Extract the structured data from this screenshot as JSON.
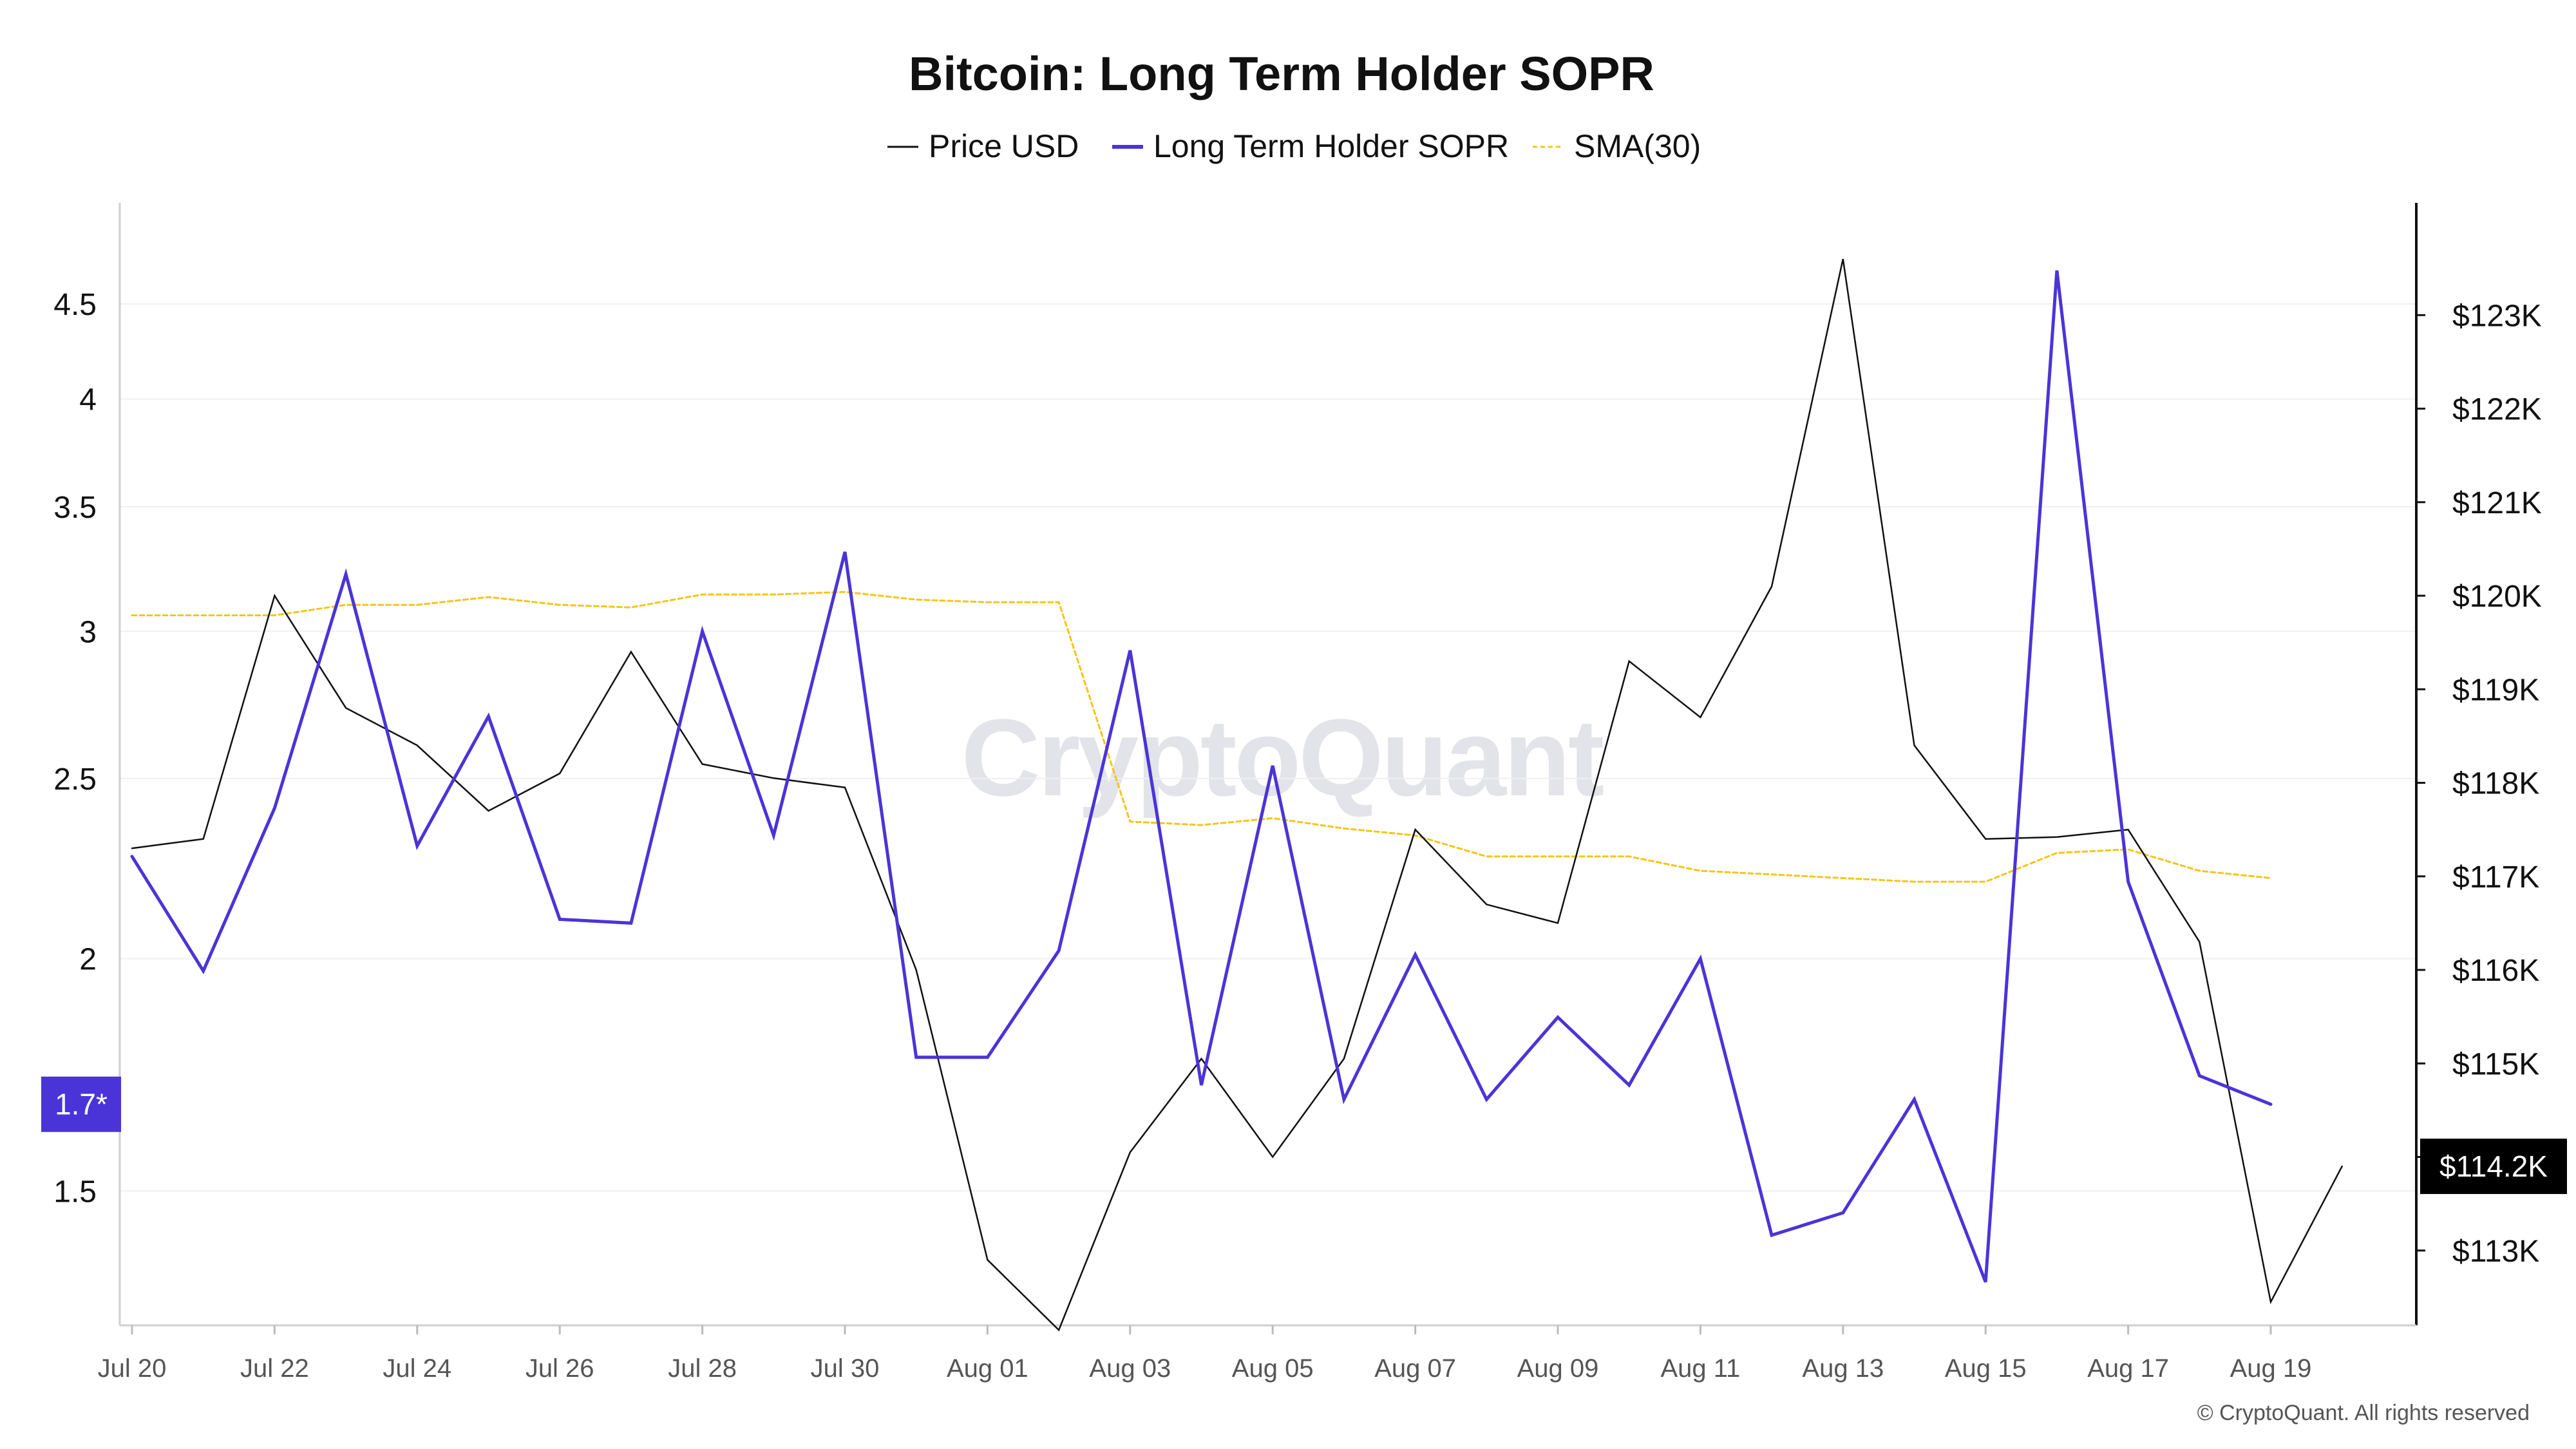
{
  "chart_data": {
    "type": "line",
    "title": "Bitcoin: Long Term Holder SOPR",
    "watermark": "CryptoQuant",
    "copyright": "© CryptoQuant. All rights reserved",
    "x": [
      "Jul 20",
      "Jul 21",
      "Jul 22",
      "Jul 23",
      "Jul 24",
      "Jul 25",
      "Jul 26",
      "Jul 27",
      "Jul 28",
      "Jul 29",
      "Jul 30",
      "Jul 31",
      "Aug 01",
      "Aug 02",
      "Aug 03",
      "Aug 04",
      "Aug 05",
      "Aug 06",
      "Aug 07",
      "Aug 08",
      "Aug 09",
      "Aug 10",
      "Aug 11",
      "Aug 12",
      "Aug 13",
      "Aug 14",
      "Aug 15",
      "Aug 16",
      "Aug 17",
      "Aug 18",
      "Aug 19",
      "Aug 20"
    ],
    "x_tick_labels": [
      "Jul 20",
      "Jul 22",
      "Jul 24",
      "Jul 26",
      "Jul 28",
      "Jul 30",
      "Aug 01",
      "Aug 03",
      "Aug 05",
      "Aug 07",
      "Aug 09",
      "Aug 11",
      "Aug 13",
      "Aug 15",
      "Aug 17",
      "Aug 19"
    ],
    "left_axis": {
      "scale": "log",
      "ticks": [
        "1.5",
        "2",
        "2.5",
        "3",
        "3.5",
        "4",
        "4.5"
      ],
      "ylim": [
        1.27,
        5.1
      ]
    },
    "right_axis": {
      "ticks": [
        "$113K",
        "$114K",
        "$115K",
        "$116K",
        "$117K",
        "$118K",
        "$119K",
        "$120K",
        "$121K",
        "$122K",
        "$123K"
      ],
      "ylim": [
        112200,
        124200
      ]
    },
    "series": [
      {
        "name": "Price USD",
        "axis": "right",
        "color": "#111111",
        "values": [
          117300,
          117400,
          120000,
          118800,
          118400,
          117700,
          118100,
          119400,
          118200,
          118050,
          117950,
          116000,
          112900,
          112150,
          114050,
          115050,
          114000,
          115050,
          117500,
          116700,
          116500,
          119300,
          118700,
          120100,
          123600,
          118400,
          117400,
          117420,
          117500,
          116300,
          112450,
          113900
        ]
      },
      {
        "name": "Long Term Holder SOPR",
        "axis": "left",
        "color": "#4a34d8",
        "values": [
          2.27,
          1.97,
          2.41,
          3.22,
          2.3,
          2.7,
          2.1,
          2.09,
          3.0,
          2.33,
          3.31,
          1.77,
          1.77,
          2.02,
          2.93,
          1.71,
          2.54,
          1.68,
          2.01,
          1.68,
          1.86,
          1.71,
          2.0,
          1.42,
          1.46,
          1.68,
          1.34,
          4.69,
          2.2,
          1.73,
          1.67,
          null
        ]
      },
      {
        "name": "SMA(30)",
        "axis": "left",
        "color": "#f5c518",
        "values": [
          3.06,
          3.06,
          3.06,
          3.1,
          3.1,
          3.13,
          3.1,
          3.09,
          3.14,
          3.14,
          3.15,
          3.12,
          3.11,
          3.11,
          2.37,
          2.36,
          2.38,
          2.35,
          2.33,
          2.27,
          2.27,
          2.27,
          2.23,
          2.22,
          2.21,
          2.2,
          2.2,
          2.28,
          2.29,
          2.23,
          2.21,
          null
        ]
      }
    ],
    "current_badges": {
      "left": "1.7*",
      "right": "$114.2K"
    }
  }
}
